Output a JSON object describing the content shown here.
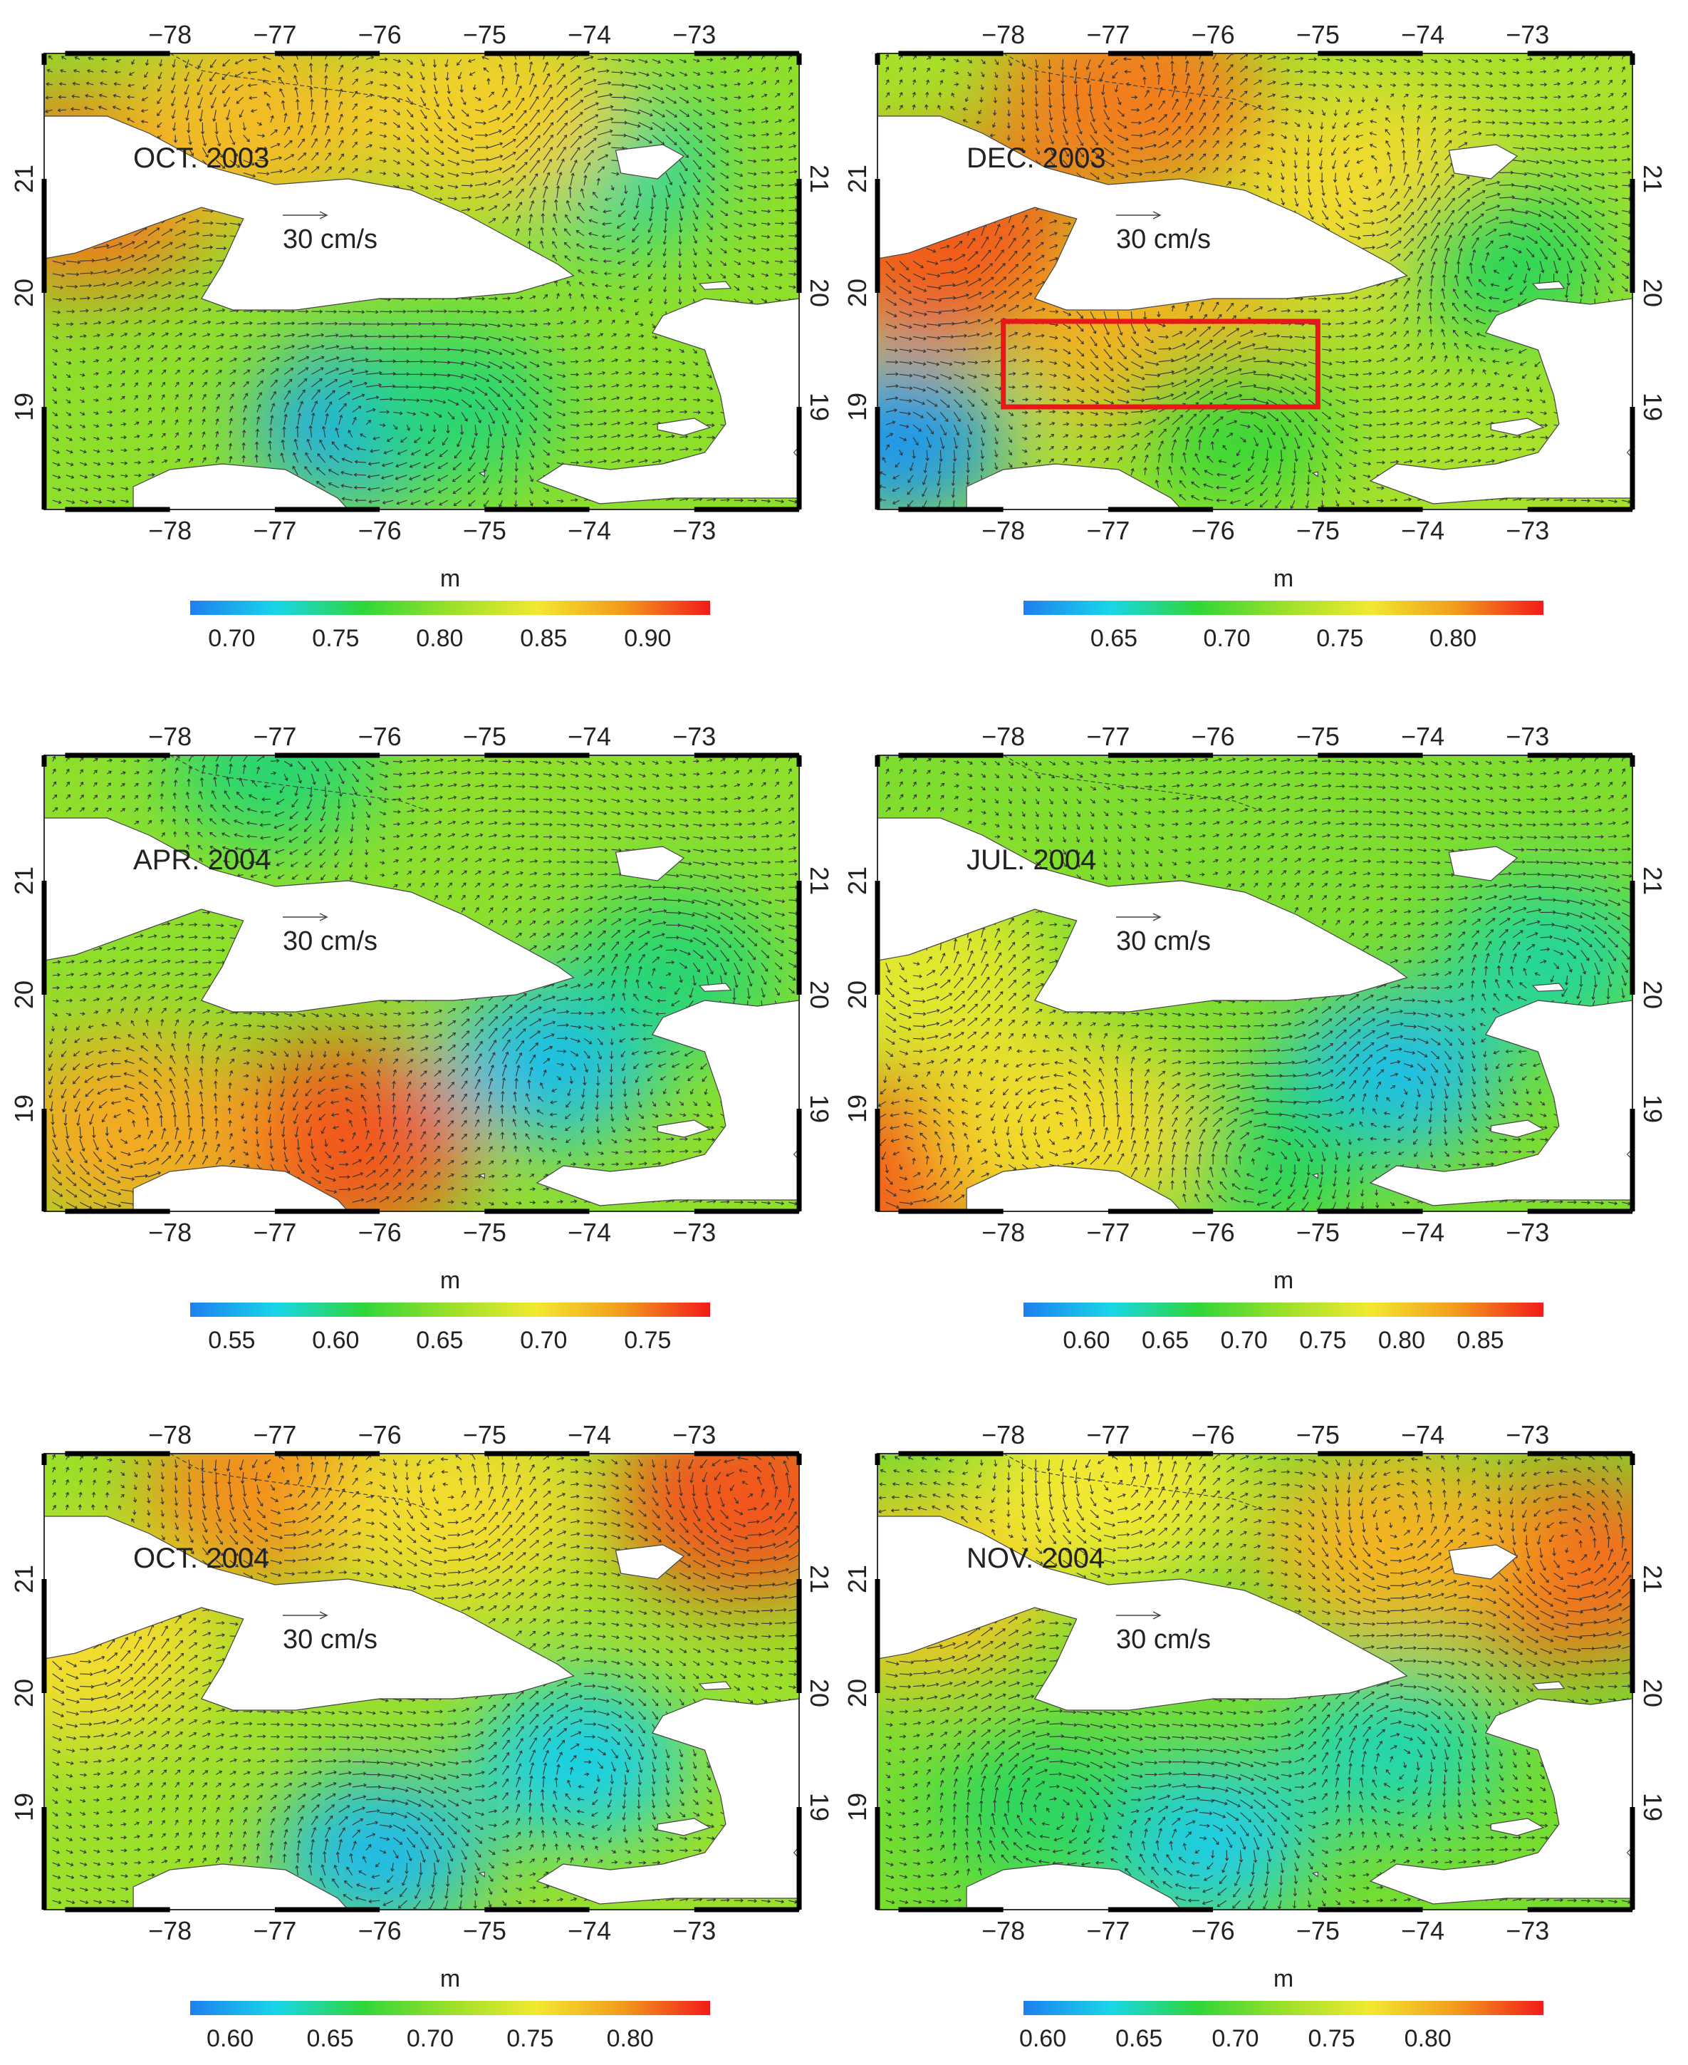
{
  "figure": {
    "vector_scale_label": "30 cm/s",
    "unit_label": "m",
    "lon_ticks": [
      "−78",
      "−77",
      "−76",
      "−75",
      "−74",
      "−73"
    ],
    "lat_ticks": [
      "19",
      "20",
      "21"
    ],
    "colormap": [
      "#1e7ff0",
      "#19d6e8",
      "#2fd63a",
      "#9be02a",
      "#f2e830",
      "#f29a1c",
      "#f21b1b"
    ]
  },
  "panels": [
    {
      "title": "OCT. 2003",
      "colorbar_ticks": [
        "0.70",
        "0.75",
        "0.80",
        "0.85",
        "0.90"
      ],
      "colorbar_range": [
        0.68,
        0.93
      ],
      "background_value": 0.8,
      "features": [
        {
          "type": "low",
          "lon": -76.2,
          "lat": 18.85,
          "value": 0.7
        },
        {
          "type": "low",
          "lon": -73.8,
          "lat": 21.1,
          "value": 0.74
        },
        {
          "type": "low",
          "lon": -75.3,
          "lat": 19.0,
          "value": 0.75
        },
        {
          "type": "high",
          "lon": -78.8,
          "lat": 20.9,
          "value": 0.9
        },
        {
          "type": "high",
          "lon": -77.2,
          "lat": 21.5,
          "value": 0.87
        },
        {
          "type": "high",
          "lon": -75.0,
          "lat": 21.6,
          "value": 0.86
        }
      ],
      "highlight_box": null
    },
    {
      "title": "DEC. 2003",
      "colorbar_ticks": [
        "0.65",
        "0.70",
        "0.75",
        "0.80"
      ],
      "colorbar_range": [
        0.61,
        0.84
      ],
      "background_value": 0.73,
      "features": [
        {
          "type": "high",
          "lon": -78.6,
          "lat": 20.4,
          "value": 0.82
        },
        {
          "type": "high",
          "lon": -76.8,
          "lat": 21.7,
          "value": 0.81
        },
        {
          "type": "high",
          "lon": -76.5,
          "lat": 19.6,
          "value": 0.79
        },
        {
          "type": "high",
          "lon": -74.5,
          "lat": 20.9,
          "value": 0.77
        },
        {
          "type": "low",
          "lon": -79.0,
          "lat": 18.7,
          "value": 0.62
        },
        {
          "type": "low",
          "lon": -73.2,
          "lat": 20.3,
          "value": 0.68
        },
        {
          "type": "low",
          "lon": -75.8,
          "lat": 18.8,
          "value": 0.69
        }
      ],
      "highlight_box": {
        "lon": [
          -78,
          -75
        ],
        "lat": [
          19.0,
          19.75
        ]
      }
    },
    {
      "title": "APR. 2004",
      "colorbar_ticks": [
        "0.55",
        "0.60",
        "0.65",
        "0.70",
        "0.75"
      ],
      "colorbar_range": [
        0.53,
        0.78
      ],
      "background_value": 0.65,
      "features": [
        {
          "type": "high",
          "lon": -76.4,
          "lat": 18.7,
          "value": 0.76
        },
        {
          "type": "high",
          "lon": -78.4,
          "lat": 18.8,
          "value": 0.73
        },
        {
          "type": "low",
          "lon": -74.4,
          "lat": 19.4,
          "value": 0.56
        },
        {
          "type": "low",
          "lon": -73.2,
          "lat": 20.2,
          "value": 0.6
        },
        {
          "type": "low",
          "lon": -77.0,
          "lat": 22.0,
          "value": 0.6
        }
      ],
      "highlight_box": null
    },
    {
      "title": "JUL. 2004",
      "colorbar_ticks": [
        "0.60",
        "0.65",
        "0.70",
        "0.75",
        "0.80",
        "0.85"
      ],
      "colorbar_range": [
        0.56,
        0.89
      ],
      "background_value": 0.71,
      "features": [
        {
          "type": "low",
          "lon": -74.3,
          "lat": 19.3,
          "value": 0.6
        },
        {
          "type": "low",
          "lon": -72.8,
          "lat": 20.3,
          "value": 0.64
        },
        {
          "type": "low",
          "lon": -75.5,
          "lat": 18.6,
          "value": 0.66
        },
        {
          "type": "high",
          "lon": -79.0,
          "lat": 18.4,
          "value": 0.86
        },
        {
          "type": "high",
          "lon": -77.4,
          "lat": 18.8,
          "value": 0.79
        },
        {
          "type": "high",
          "lon": -78.8,
          "lat": 20.2,
          "value": 0.77
        }
      ],
      "highlight_box": null
    },
    {
      "title": "OCT. 2004",
      "colorbar_ticks": [
        "0.60",
        "0.65",
        "0.70",
        "0.75",
        "0.80"
      ],
      "colorbar_range": [
        0.58,
        0.84
      ],
      "background_value": 0.71,
      "features": [
        {
          "type": "low",
          "lon": -76.0,
          "lat": 18.6,
          "value": 0.61
        },
        {
          "type": "low",
          "lon": -74.1,
          "lat": 19.4,
          "value": 0.62
        },
        {
          "type": "high",
          "lon": -72.5,
          "lat": 21.7,
          "value": 0.82
        },
        {
          "type": "high",
          "lon": -77.0,
          "lat": 21.8,
          "value": 0.8
        },
        {
          "type": "high",
          "lon": -78.8,
          "lat": 20.4,
          "value": 0.76
        },
        {
          "type": "high",
          "lon": -75.3,
          "lat": 21.6,
          "value": 0.76
        }
      ],
      "highlight_box": null
    },
    {
      "title": "NOV. 2004",
      "colorbar_ticks": [
        "0.60",
        "0.65",
        "0.70",
        "0.75",
        "0.80"
      ],
      "colorbar_range": [
        0.59,
        0.86
      ],
      "background_value": 0.71,
      "features": [
        {
          "type": "low",
          "lon": -76.1,
          "lat": 18.7,
          "value": 0.63
        },
        {
          "type": "low",
          "lon": -74.3,
          "lat": 19.5,
          "value": 0.65
        },
        {
          "type": "low",
          "lon": -77.6,
          "lat": 19.0,
          "value": 0.67
        },
        {
          "type": "high",
          "lon": -72.6,
          "lat": 21.1,
          "value": 0.83
        },
        {
          "type": "high",
          "lon": -74.3,
          "lat": 21.3,
          "value": 0.8
        },
        {
          "type": "high",
          "lon": -78.8,
          "lat": 20.9,
          "value": 0.79
        },
        {
          "type": "high",
          "lon": -77.0,
          "lat": 21.8,
          "value": 0.77
        }
      ],
      "highlight_box": null
    }
  ]
}
